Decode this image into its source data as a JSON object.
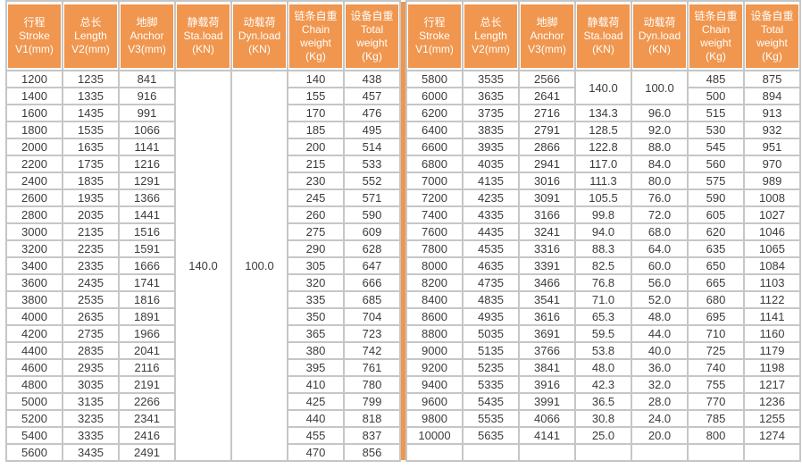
{
  "colors": {
    "header_bg": "#F0964E",
    "header_text": "#FFFFFF",
    "grid_line": "#C6C6C6",
    "cell_text": "#3C3C3C",
    "divider": "#F0964E"
  },
  "columns": [
    {
      "id": "stroke",
      "lines": [
        "行程",
        "Stroke",
        "V1(mm)"
      ]
    },
    {
      "id": "length",
      "lines": [
        "总长",
        "Length",
        "V2(mm)"
      ]
    },
    {
      "id": "anchor",
      "lines": [
        "地脚",
        "Anchor",
        "V3(mm)"
      ]
    },
    {
      "id": "sta-load",
      "lines": [
        "静载荷",
        "Sta.load",
        "(KN)"
      ]
    },
    {
      "id": "dyn-load",
      "lines": [
        "动载荷",
        "Dyn.load",
        "(KN)"
      ]
    },
    {
      "id": "chain-weight",
      "lines": [
        "链条自重",
        "Chain",
        "weight",
        "(Kg)"
      ]
    },
    {
      "id": "total-weight",
      "lines": [
        "设备自重",
        "Total",
        "weight",
        "(Kg)"
      ]
    }
  ],
  "left": {
    "merged": {
      "sta_load": "140.0",
      "dyn_load": "100.0",
      "rowspan": 23
    },
    "rows": [
      [
        "1200",
        "1235",
        "841",
        null,
        null,
        "140",
        "438"
      ],
      [
        "1400",
        "1335",
        "916",
        null,
        null,
        "155",
        "457"
      ],
      [
        "1600",
        "1435",
        "991",
        null,
        null,
        "170",
        "476"
      ],
      [
        "1800",
        "1535",
        "1066",
        null,
        null,
        "185",
        "495"
      ],
      [
        "2000",
        "1635",
        "1141",
        null,
        null,
        "200",
        "514"
      ],
      [
        "2200",
        "1735",
        "1216",
        null,
        null,
        "215",
        "533"
      ],
      [
        "2400",
        "1835",
        "1291",
        null,
        null,
        "230",
        "552"
      ],
      [
        "2600",
        "1935",
        "1366",
        null,
        null,
        "245",
        "571"
      ],
      [
        "2800",
        "2035",
        "1441",
        null,
        null,
        "260",
        "590"
      ],
      [
        "3000",
        "2135",
        "1516",
        null,
        null,
        "275",
        "609"
      ],
      [
        "3200",
        "2235",
        "1591",
        null,
        null,
        "290",
        "628"
      ],
      [
        "3400",
        "2335",
        "1666",
        null,
        null,
        "305",
        "647"
      ],
      [
        "3600",
        "2435",
        "1741",
        null,
        null,
        "320",
        "666"
      ],
      [
        "3800",
        "2535",
        "1816",
        null,
        null,
        "335",
        "685"
      ],
      [
        "4000",
        "2635",
        "1891",
        null,
        null,
        "350",
        "704"
      ],
      [
        "4200",
        "2735",
        "1966",
        null,
        null,
        "365",
        "723"
      ],
      [
        "4400",
        "2835",
        "2041",
        null,
        null,
        "380",
        "742"
      ],
      [
        "4600",
        "2935",
        "2116",
        null,
        null,
        "395",
        "761"
      ],
      [
        "4800",
        "3035",
        "2191",
        null,
        null,
        "410",
        "780"
      ],
      [
        "5000",
        "3135",
        "2266",
        null,
        null,
        "425",
        "799"
      ],
      [
        "5200",
        "3235",
        "2341",
        null,
        null,
        "440",
        "818"
      ],
      [
        "5400",
        "3335",
        "2416",
        null,
        null,
        "455",
        "837"
      ],
      [
        "5600",
        "3435",
        "2491",
        null,
        null,
        "470",
        "856"
      ]
    ]
  },
  "right": {
    "merged": {
      "sta_load": "140.0",
      "dyn_load": "100.0",
      "rowspan": 2
    },
    "rows": [
      [
        "5800",
        "3535",
        "2566",
        null,
        null,
        "485",
        "875"
      ],
      [
        "6000",
        "3635",
        "2641",
        null,
        null,
        "500",
        "894"
      ],
      [
        "6200",
        "3735",
        "2716",
        "134.3",
        "96.0",
        "515",
        "913"
      ],
      [
        "6400",
        "3835",
        "2791",
        "128.5",
        "92.0",
        "530",
        "932"
      ],
      [
        "6600",
        "3935",
        "2866",
        "122.8",
        "88.0",
        "545",
        "951"
      ],
      [
        "6800",
        "4035",
        "2941",
        "117.0",
        "84.0",
        "560",
        "970"
      ],
      [
        "7000",
        "4135",
        "3016",
        "111.3",
        "80.0",
        "575",
        "989"
      ],
      [
        "7200",
        "4235",
        "3091",
        "105.5",
        "76.0",
        "590",
        "1008"
      ],
      [
        "7400",
        "4335",
        "3166",
        "99.8",
        "72.0",
        "605",
        "1027"
      ],
      [
        "7600",
        "4435",
        "3241",
        "94.0",
        "68.0",
        "620",
        "1046"
      ],
      [
        "7800",
        "4535",
        "3316",
        "88.3",
        "64.0",
        "635",
        "1065"
      ],
      [
        "8000",
        "4635",
        "3391",
        "82.5",
        "60.0",
        "650",
        "1084"
      ],
      [
        "8200",
        "4735",
        "3466",
        "76.8",
        "56.0",
        "665",
        "1103"
      ],
      [
        "8400",
        "4835",
        "3541",
        "71.0",
        "52.0",
        "680",
        "1122"
      ],
      [
        "8600",
        "4935",
        "3616",
        "65.3",
        "48.0",
        "695",
        "1141"
      ],
      [
        "8800",
        "5035",
        "3691",
        "59.5",
        "44.0",
        "710",
        "1160"
      ],
      [
        "9000",
        "5135",
        "3766",
        "53.8",
        "40.0",
        "725",
        "1179"
      ],
      [
        "9200",
        "5235",
        "3841",
        "48.0",
        "36.0",
        "740",
        "1198"
      ],
      [
        "9400",
        "5335",
        "3916",
        "42.3",
        "32.0",
        "755",
        "1217"
      ],
      [
        "9600",
        "5435",
        "3991",
        "36.5",
        "28.0",
        "770",
        "1236"
      ],
      [
        "9800",
        "5535",
        "4066",
        "30.8",
        "24.0",
        "785",
        "1255"
      ],
      [
        "10000",
        "5635",
        "4141",
        "25.0",
        "20.0",
        "800",
        "1274"
      ],
      [
        "",
        "",
        "",
        "",
        "",
        "",
        ""
      ]
    ]
  }
}
